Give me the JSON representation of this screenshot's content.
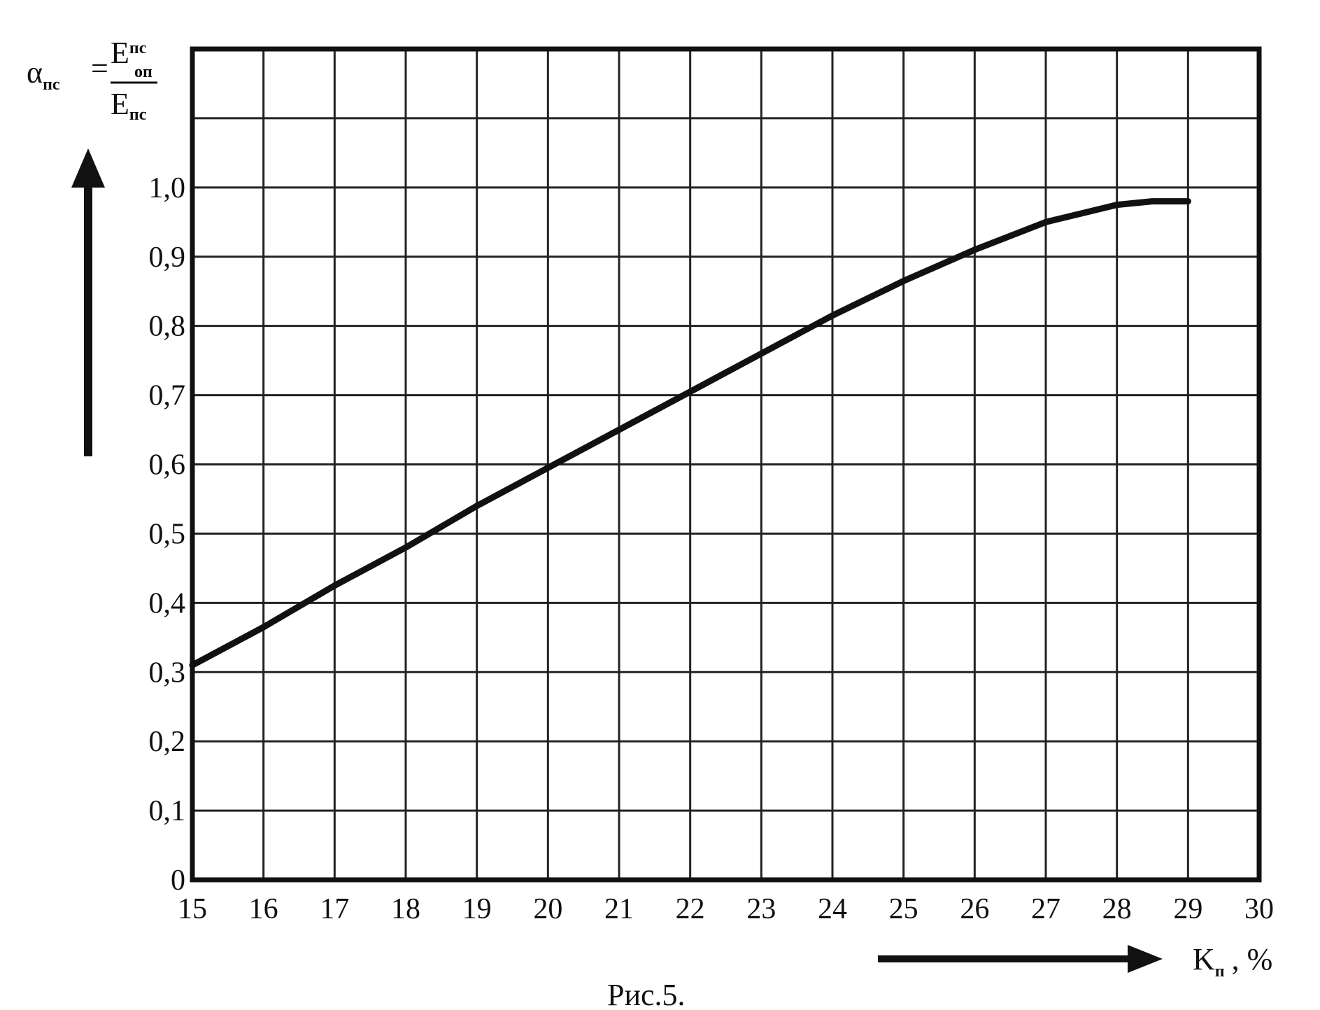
{
  "chart_data": {
    "type": "line",
    "x": [
      15,
      16,
      17,
      18,
      19,
      20,
      21,
      22,
      23,
      24,
      25,
      26,
      27,
      28,
      28.5,
      29
    ],
    "series": [
      {
        "values": [
          0.31,
          0.365,
          0.425,
          0.48,
          0.54,
          0.595,
          0.65,
          0.705,
          0.76,
          0.815,
          0.865,
          0.91,
          0.95,
          0.975,
          0.98,
          0.98
        ]
      }
    ],
    "xlim": [
      15,
      30
    ],
    "ylim": [
      0,
      1.2
    ],
    "x_ticks": [
      15,
      16,
      17,
      18,
      19,
      20,
      21,
      22,
      23,
      24,
      25,
      26,
      27,
      28,
      29,
      30
    ],
    "x_tick_labels": [
      "15",
      "16",
      "17",
      "18",
      "19",
      "20",
      "21",
      "22",
      "23",
      "24",
      "25",
      "26",
      "27",
      "28",
      "29",
      "30"
    ],
    "y_ticks": [
      0,
      0.1,
      0.2,
      0.3,
      0.4,
      0.5,
      0.6,
      0.7,
      0.8,
      0.9,
      1.0
    ],
    "y_tick_labels": [
      "0",
      "0,1",
      "0,2",
      "0,3",
      "0,4",
      "0,5",
      "0,6",
      "0,7",
      "0,8",
      "0,9",
      "1,0"
    ],
    "grid": true,
    "ylabel": {
      "symbol": "α",
      "symbol_sub": "пс",
      "numerator": "E",
      "numerator_sub": "пс",
      "numerator_sup": "оп",
      "denominator": "E",
      "denominator_sub": "пс"
    },
    "xlabel": {
      "symbol": "K",
      "symbol_sub": "п",
      "unit": ", %"
    },
    "caption": "Рис.5."
  },
  "colors": {
    "line": "#111111",
    "grid": "#222222",
    "background": "#ffffff"
  }
}
